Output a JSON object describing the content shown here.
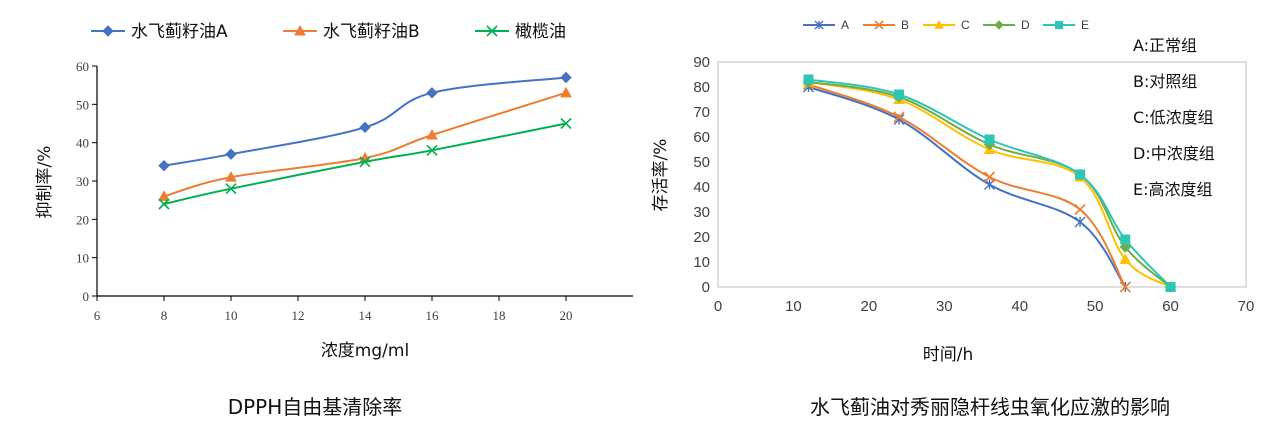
{
  "chart_data": [
    {
      "type": "line",
      "title": "",
      "caption": "DPPH自由基清除率",
      "xlabel": "浓度mg/ml",
      "ylabel": "抑制率/%",
      "xlim": [
        6,
        22
      ],
      "ylim": [
        0,
        60
      ],
      "xticks": [
        "6",
        "8",
        "10",
        "12",
        "14",
        "16",
        "18",
        "20"
      ],
      "yticks": [
        "0",
        "10",
        "20",
        "30",
        "40",
        "50",
        "60"
      ],
      "legend_position": "top",
      "series": [
        {
          "name": "水飞蓟籽油A",
          "color": "#4472C4",
          "marker": "diamond",
          "x": [
            8,
            10,
            14,
            16,
            20
          ],
          "y": [
            34,
            37,
            44,
            53,
            57
          ]
        },
        {
          "name": "水飞蓟籽油B",
          "color": "#ED7D31",
          "marker": "triangle",
          "x": [
            8,
            10,
            14,
            16,
            20
          ],
          "y": [
            26,
            31,
            36,
            42,
            53
          ]
        },
        {
          "name": "橄榄油",
          "color": "#00B050",
          "marker": "x",
          "x": [
            8,
            10,
            14,
            16,
            20
          ],
          "y": [
            24,
            28,
            35,
            38,
            45
          ]
        }
      ]
    },
    {
      "type": "line",
      "title": "",
      "caption": "水飞蓟油对秀丽隐杆线虫氧化应激的影响",
      "xlabel": "时间/h",
      "ylabel": "存活率/%",
      "xlim": [
        0,
        70
      ],
      "ylim": [
        0,
        90
      ],
      "xticks": [
        "0",
        "10",
        "20",
        "30",
        "40",
        "50",
        "60",
        "70"
      ],
      "yticks": [
        "0",
        "10",
        "20",
        "30",
        "40",
        "50",
        "60",
        "70",
        "80",
        "90"
      ],
      "legend_position": "top",
      "notes": [
        "A:正常组",
        "B:对照组",
        "C:低浓度组",
        "D:中浓度组",
        "E:高浓度组"
      ],
      "series": [
        {
          "name": "A",
          "color": "#4472C4",
          "marker": "asterisk",
          "x": [
            12,
            24,
            36,
            48,
            54
          ],
          "y": [
            80,
            67,
            41,
            26,
            0
          ]
        },
        {
          "name": "B",
          "color": "#ED7D31",
          "marker": "x",
          "x": [
            12,
            24,
            36,
            48,
            54
          ],
          "y": [
            81,
            68,
            44,
            31,
            0
          ]
        },
        {
          "name": "C",
          "color": "#FFC000",
          "marker": "triangle",
          "x": [
            12,
            24,
            36,
            48,
            54,
            60
          ],
          "y": [
            82,
            75,
            55,
            44,
            11,
            0
          ]
        },
        {
          "name": "D",
          "color": "#70AD47",
          "marker": "diamond",
          "x": [
            12,
            24,
            36,
            48,
            54,
            60
          ],
          "y": [
            82,
            76,
            57,
            45,
            16,
            0
          ]
        },
        {
          "name": "E",
          "color": "#2EC4B6",
          "marker": "square",
          "x": [
            12,
            24,
            36,
            48,
            54,
            60
          ],
          "y": [
            83,
            77,
            59,
            45,
            19,
            0
          ]
        }
      ]
    }
  ]
}
